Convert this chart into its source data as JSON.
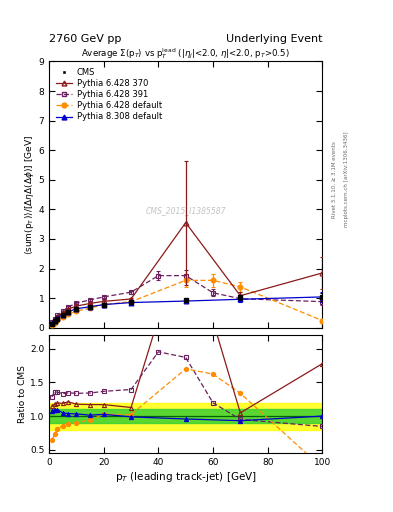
{
  "title_left": "2760 GeV pp",
  "title_right": "Underlying Event",
  "ylabel_main": "<sum(p_{T})>/[#Delta#eta#Delta(#Delta#phi)] [GeV]",
  "ylabel_ratio": "Ratio to CMS",
  "xlabel": "p_{T} (leading track-jet) [GeV]",
  "watermark": "CMS_2015_I1385587",
  "ylim_main": [
    0,
    9
  ],
  "ylim_ratio": [
    0.45,
    2.2
  ],
  "xlim": [
    0,
    100
  ],
  "cms_x": [
    1,
    2,
    3,
    5,
    7,
    10,
    15,
    20,
    30,
    50,
    70,
    100
  ],
  "cms_y": [
    0.14,
    0.22,
    0.31,
    0.42,
    0.52,
    0.62,
    0.7,
    0.76,
    0.86,
    0.94,
    1.03,
    1.04
  ],
  "cms_yerr": [
    0.01,
    0.01,
    0.02,
    0.02,
    0.03,
    0.04,
    0.04,
    0.05,
    0.06,
    0.07,
    0.09,
    0.14
  ],
  "py6_370_x": [
    1,
    2,
    3,
    5,
    7,
    10,
    15,
    20,
    30,
    50,
    70,
    100
  ],
  "py6_370_y": [
    0.16,
    0.26,
    0.37,
    0.5,
    0.63,
    0.73,
    0.82,
    0.89,
    0.97,
    3.55,
    1.08,
    1.85
  ],
  "py6_370_yerr": [
    0.01,
    0.01,
    0.01,
    0.02,
    0.02,
    0.03,
    0.03,
    0.04,
    0.05,
    2.1,
    0.12,
    0.55
  ],
  "py6_391_x": [
    1,
    2,
    3,
    5,
    7,
    10,
    15,
    20,
    30,
    40,
    50,
    60,
    70,
    100
  ],
  "py6_391_y": [
    0.18,
    0.3,
    0.42,
    0.56,
    0.7,
    0.83,
    0.94,
    1.04,
    1.2,
    1.76,
    1.76,
    1.18,
    0.98,
    0.88
  ],
  "py6_391_yerr": [
    0.01,
    0.01,
    0.01,
    0.02,
    0.02,
    0.03,
    0.03,
    0.04,
    0.05,
    0.14,
    0.18,
    0.12,
    0.09,
    0.11
  ],
  "py6_def_x": [
    1,
    2,
    3,
    5,
    7,
    10,
    15,
    20,
    30,
    50,
    60,
    70,
    100
  ],
  "py6_def_y": [
    0.09,
    0.16,
    0.25,
    0.36,
    0.46,
    0.56,
    0.66,
    0.78,
    0.88,
    1.6,
    1.6,
    1.38,
    0.24
  ],
  "py6_def_yerr": [
    0.01,
    0.01,
    0.01,
    0.02,
    0.02,
    0.03,
    0.03,
    0.04,
    0.05,
    0.22,
    0.22,
    0.18,
    0.07
  ],
  "py8_def_x": [
    1,
    2,
    3,
    5,
    7,
    10,
    15,
    20,
    30,
    50,
    70,
    100
  ],
  "py8_def_y": [
    0.15,
    0.24,
    0.34,
    0.44,
    0.54,
    0.64,
    0.71,
    0.78,
    0.85,
    0.9,
    0.96,
    1.04
  ],
  "py8_def_yerr": [
    0.01,
    0.01,
    0.01,
    0.02,
    0.02,
    0.03,
    0.03,
    0.04,
    0.05,
    0.07,
    0.09,
    0.17
  ],
  "color_cms": "#000000",
  "color_py6_370": "#8B1A1A",
  "color_py6_391": "#6B2060",
  "color_py6_def": "#FF8C00",
  "color_py8_def": "#0000CC",
  "band_green": 0.1,
  "band_yellow": 0.2
}
